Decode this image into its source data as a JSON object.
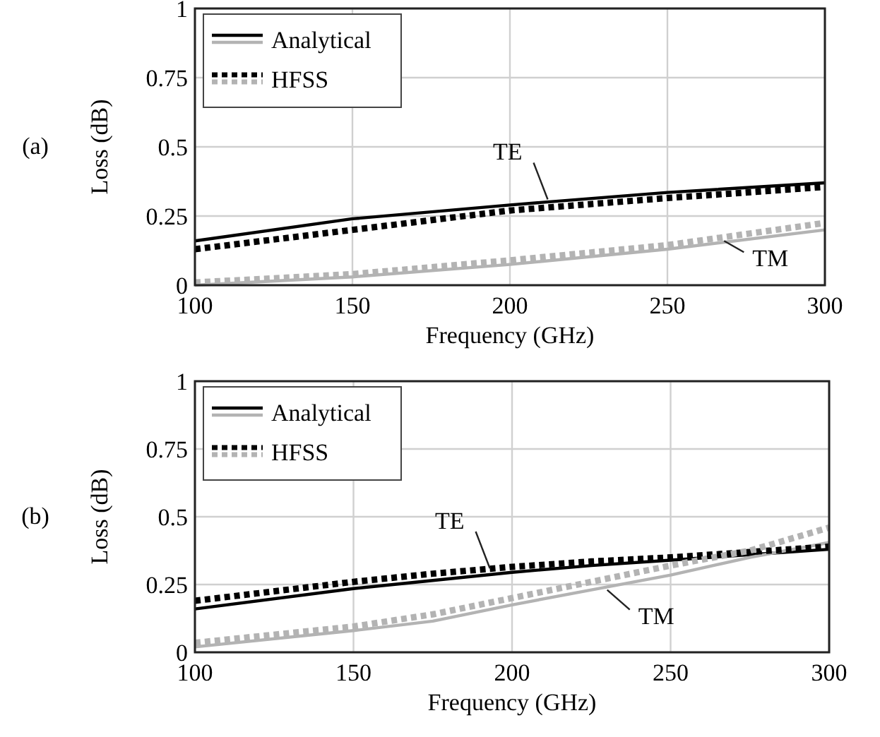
{
  "chart_data": [
    {
      "type": "line",
      "title": "(a)",
      "xlabel": "Frequency (GHz)",
      "ylabel": "Loss (dB)",
      "x": [
        100,
        150,
        200,
        250,
        300
      ],
      "xlim": [
        100,
        300
      ],
      "ylim": [
        0,
        1
      ],
      "xticks": [
        100,
        150,
        200,
        250,
        300
      ],
      "yticks": [
        0,
        0.25,
        0.5,
        0.75,
        1
      ],
      "grid": true,
      "legend": "top left",
      "marker": "none",
      "series": [
        {
          "name": "Analytical",
          "color": "#000000",
          "line_style": "solid",
          "values": [
            0.16,
            0.24,
            0.29,
            0.335,
            0.37
          ]
        },
        {
          "color": "#b3b3b3",
          "line_style": "solid",
          "values": [
            0.0,
            0.03,
            0.075,
            0.13,
            0.2
          ]
        },
        {
          "name": "HFSS",
          "color": "#000000",
          "line_style": "dotted",
          "values": [
            0.13,
            0.2,
            0.27,
            0.315,
            0.355
          ]
        },
        {
          "color": "#b3b3b3",
          "line_style": "dotted",
          "values": [
            0.01,
            0.04,
            0.09,
            0.145,
            0.225
          ]
        }
      ],
      "annotations": [
        {
          "text": "TE",
          "x": 212,
          "y": 0.31
        },
        {
          "text": "TM",
          "x": 268,
          "y": 0.16
        }
      ]
    },
    {
      "type": "line",
      "title": "(b)",
      "xlabel": "Frequency (GHz)",
      "ylabel": "Loss (dB)",
      "x": [
        100,
        150,
        175,
        200,
        225,
        250,
        275,
        300
      ],
      "xlim": [
        100,
        300
      ],
      "ylim": [
        0,
        1
      ],
      "xticks": [
        100,
        150,
        200,
        250,
        300
      ],
      "yticks": [
        0,
        0.25,
        0.5,
        0.75,
        1
      ],
      "grid": true,
      "legend": "top left",
      "marker": "none",
      "series": [
        {
          "name": "Analytical",
          "color": "#000000",
          "line_style": "solid",
          "values": [
            0.16,
            0.235,
            0.265,
            0.295,
            0.32,
            0.34,
            0.36,
            0.38
          ]
        },
        {
          "color": "#b3b3b3",
          "line_style": "solid",
          "values": [
            0.02,
            0.08,
            0.115,
            0.175,
            0.23,
            0.285,
            0.35,
            0.405
          ]
        },
        {
          "name": "HFSS",
          "color": "#000000",
          "line_style": "dotted",
          "values": [
            0.19,
            0.26,
            0.29,
            0.315,
            0.335,
            0.35,
            0.37,
            0.39
          ]
        },
        {
          "color": "#b3b3b3",
          "line_style": "dotted",
          "values": [
            0.035,
            0.095,
            0.14,
            0.2,
            0.26,
            0.32,
            0.375,
            0.46
          ]
        }
      ],
      "annotations": [
        {
          "text": "TE",
          "x": 193,
          "y": 0.31
        },
        {
          "text": "TM",
          "x": 230,
          "y": 0.23
        }
      ]
    }
  ]
}
